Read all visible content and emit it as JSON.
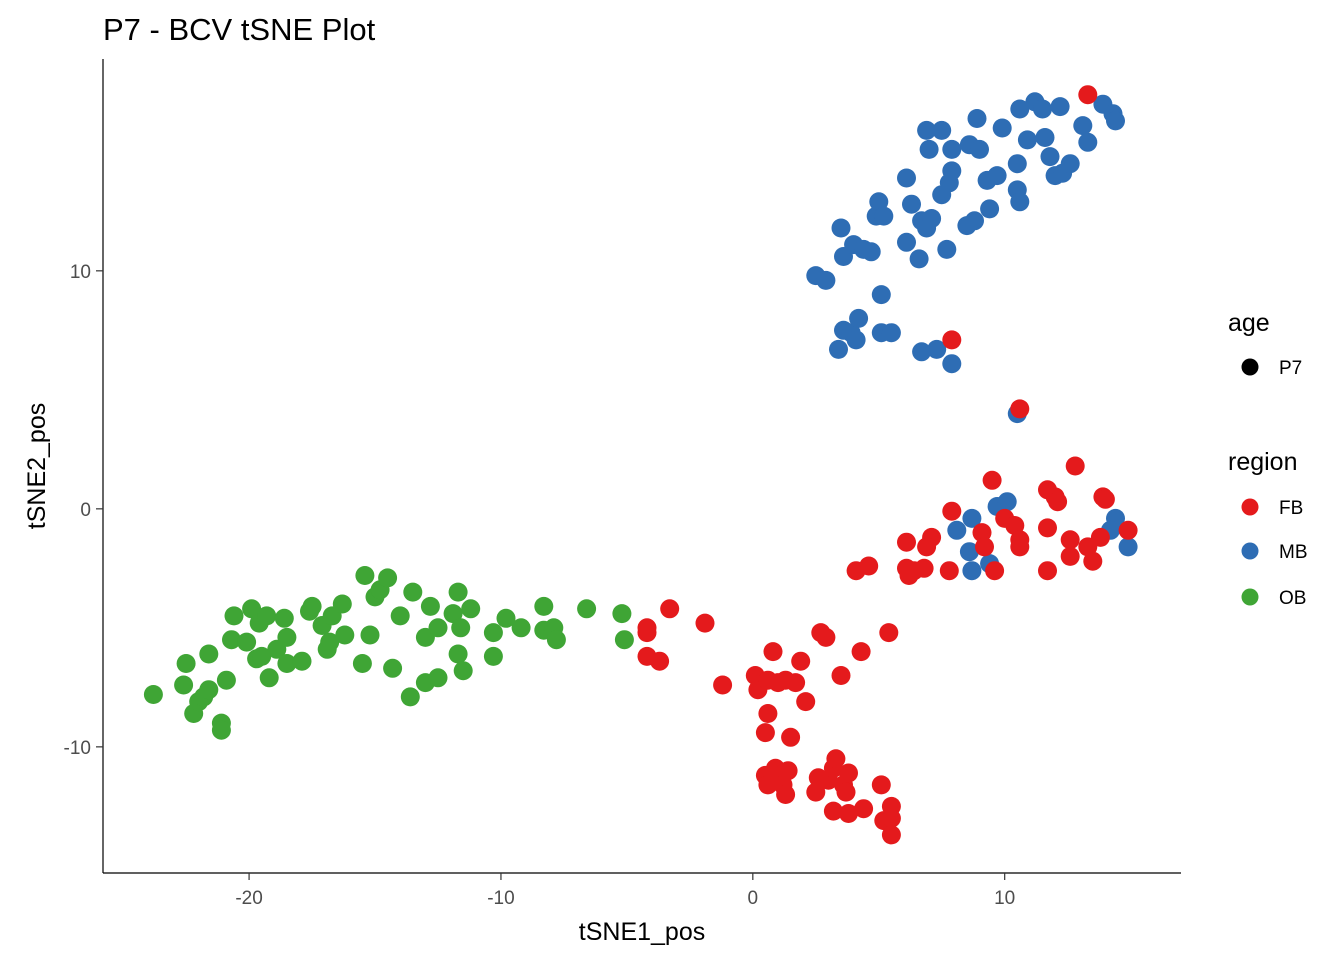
{
  "chart_data": {
    "type": "scatter",
    "title": "P7 - BCV tSNE Plot",
    "xlabel": "tSNE1_pos",
    "ylabel": "tSNE2_pos",
    "xlim": [
      -25.8,
      17.0
    ],
    "ylim": [
      -15.3,
      18.9
    ],
    "xticks": [
      -20,
      -10,
      0,
      10
    ],
    "yticks": [
      -10,
      0,
      10
    ],
    "x_tick_labels": [
      "-20",
      "-10",
      "0",
      "10"
    ],
    "y_tick_labels": [
      "-10",
      "0",
      "10"
    ],
    "grid": false,
    "legend": {
      "placement": "right",
      "groups": [
        {
          "title": "age",
          "entries": [
            {
              "label": "P7",
              "color": "#000000"
            }
          ]
        },
        {
          "title": "region",
          "entries": [
            {
              "label": "FB",
              "color": "#E41A1C"
            },
            {
              "label": "MB",
              "color": "#2E6DB4"
            },
            {
              "label": "OB",
              "color": "#3FA535"
            }
          ]
        }
      ]
    },
    "series": [
      {
        "name": "MB",
        "color": "#2E6DB4",
        "points": [
          [
            2.5,
            9.8
          ],
          [
            2.9,
            9.6
          ],
          [
            3.4,
            6.7
          ],
          [
            3.6,
            7.5
          ],
          [
            3.9,
            7.4
          ],
          [
            4.1,
            7.1
          ],
          [
            4.2,
            8.0
          ],
          [
            5.1,
            9.0
          ],
          [
            5.1,
            7.4
          ],
          [
            5.5,
            7.4
          ],
          [
            6.7,
            6.6
          ],
          [
            7.3,
            6.7
          ],
          [
            7.9,
            6.1
          ],
          [
            10.5,
            4.0
          ],
          [
            3.5,
            11.8
          ],
          [
            3.6,
            10.6
          ],
          [
            4.0,
            11.1
          ],
          [
            4.4,
            10.9
          ],
          [
            4.7,
            10.8
          ],
          [
            4.9,
            12.3
          ],
          [
            5.0,
            12.9
          ],
          [
            5.2,
            12.3
          ],
          [
            6.1,
            13.9
          ],
          [
            6.1,
            11.2
          ],
          [
            6.3,
            12.8
          ],
          [
            6.6,
            10.5
          ],
          [
            6.7,
            12.1
          ],
          [
            6.9,
            11.8
          ],
          [
            6.9,
            15.9
          ],
          [
            7.0,
            15.1
          ],
          [
            7.1,
            12.2
          ],
          [
            7.5,
            13.2
          ],
          [
            7.5,
            15.9
          ],
          [
            7.7,
            10.9
          ],
          [
            7.8,
            13.7
          ],
          [
            7.9,
            14.2
          ],
          [
            7.9,
            15.1
          ],
          [
            8.5,
            11.9
          ],
          [
            8.6,
            15.3
          ],
          [
            8.8,
            12.1
          ],
          [
            8.9,
            16.4
          ],
          [
            9.0,
            15.1
          ],
          [
            9.3,
            13.8
          ],
          [
            9.4,
            12.6
          ],
          [
            9.7,
            14.0
          ],
          [
            9.9,
            16.0
          ],
          [
            10.5,
            14.5
          ],
          [
            10.5,
            13.4
          ],
          [
            10.6,
            12.9
          ],
          [
            10.6,
            16.8
          ],
          [
            10.9,
            15.5
          ],
          [
            11.2,
            17.1
          ],
          [
            11.5,
            16.8
          ],
          [
            11.6,
            15.6
          ],
          [
            11.8,
            14.8
          ],
          [
            12.0,
            14.0
          ],
          [
            12.2,
            16.9
          ],
          [
            12.3,
            14.1
          ],
          [
            12.6,
            14.5
          ],
          [
            13.1,
            16.1
          ],
          [
            13.3,
            15.4
          ],
          [
            13.9,
            17.0
          ],
          [
            14.3,
            16.6
          ],
          [
            14.4,
            16.3
          ],
          [
            8.7,
            -0.4
          ],
          [
            8.1,
            -0.9
          ],
          [
            8.6,
            -1.8
          ],
          [
            8.7,
            -2.6
          ],
          [
            9.4,
            -2.3
          ],
          [
            9.7,
            0.1
          ],
          [
            10.1,
            0.3
          ],
          [
            14.4,
            -0.4
          ],
          [
            14.2,
            -0.9
          ],
          [
            14.9,
            -1.6
          ]
        ]
      },
      {
        "name": "FB",
        "color": "#E41A1C",
        "points": [
          [
            13.3,
            17.4
          ],
          [
            7.9,
            7.1
          ],
          [
            10.6,
            4.2
          ],
          [
            7.9,
            -0.1
          ],
          [
            7.8,
            -2.6
          ],
          [
            9.5,
            1.2
          ],
          [
            9.1,
            -1.0
          ],
          [
            9.2,
            -1.6
          ],
          [
            9.6,
            -2.6
          ],
          [
            10.0,
            -0.4
          ],
          [
            10.4,
            -0.7
          ],
          [
            10.6,
            -1.3
          ],
          [
            10.6,
            -1.6
          ],
          [
            11.7,
            0.8
          ],
          [
            11.7,
            -0.8
          ],
          [
            11.7,
            -2.6
          ],
          [
            12.0,
            0.5
          ],
          [
            12.1,
            0.3
          ],
          [
            12.6,
            -1.3
          ],
          [
            12.6,
            -2.0
          ],
          [
            12.8,
            1.8
          ],
          [
            13.3,
            -1.6
          ],
          [
            13.5,
            -2.2
          ],
          [
            13.8,
            -1.2
          ],
          [
            13.9,
            0.5
          ],
          [
            14.0,
            0.4
          ],
          [
            14.9,
            -0.9
          ],
          [
            7.1,
            -1.2
          ],
          [
            6.9,
            -1.6
          ],
          [
            6.1,
            -1.4
          ],
          [
            6.1,
            -2.5
          ],
          [
            6.2,
            -2.8
          ],
          [
            6.4,
            -2.6
          ],
          [
            6.8,
            -2.5
          ],
          [
            4.1,
            -2.6
          ],
          [
            4.6,
            -2.4
          ],
          [
            -3.3,
            -4.2
          ],
          [
            -4.2,
            -5.0
          ],
          [
            -4.2,
            -5.2
          ],
          [
            -4.2,
            -6.2
          ],
          [
            -3.7,
            -6.4
          ],
          [
            -1.9,
            -4.8
          ],
          [
            -1.2,
            -7.4
          ],
          [
            0.1,
            -7.0
          ],
          [
            0.2,
            -7.6
          ],
          [
            0.6,
            -7.2
          ],
          [
            0.8,
            -6.0
          ],
          [
            0.6,
            -8.6
          ],
          [
            0.5,
            -9.4
          ],
          [
            1.0,
            -7.3
          ],
          [
            1.3,
            -7.2
          ],
          [
            1.5,
            -9.6
          ],
          [
            1.7,
            -7.3
          ],
          [
            1.9,
            -6.4
          ],
          [
            2.1,
            -8.1
          ],
          [
            2.7,
            -5.2
          ],
          [
            2.9,
            -5.4
          ],
          [
            3.5,
            -7.0
          ],
          [
            4.3,
            -6.0
          ],
          [
            5.4,
            -5.2
          ],
          [
            0.5,
            -11.2
          ],
          [
            0.6,
            -11.6
          ],
          [
            0.9,
            -10.9
          ],
          [
            1.1,
            -11.2
          ],
          [
            1.2,
            -11.6
          ],
          [
            1.3,
            -12.0
          ],
          [
            1.4,
            -11.0
          ],
          [
            2.5,
            -11.9
          ],
          [
            2.6,
            -11.3
          ],
          [
            3.0,
            -11.4
          ],
          [
            3.2,
            -10.9
          ],
          [
            3.3,
            -10.5
          ],
          [
            3.2,
            -12.7
          ],
          [
            3.6,
            -11.6
          ],
          [
            3.7,
            -11.9
          ],
          [
            3.8,
            -11.1
          ],
          [
            3.8,
            -12.8
          ],
          [
            4.4,
            -12.6
          ],
          [
            5.1,
            -11.6
          ],
          [
            5.2,
            -13.1
          ],
          [
            5.5,
            -12.5
          ],
          [
            5.5,
            -13.0
          ],
          [
            5.5,
            -13.7
          ]
        ]
      },
      {
        "name": "OB",
        "color": "#3FA535",
        "points": [
          [
            -23.8,
            -7.8
          ],
          [
            -22.6,
            -7.4
          ],
          [
            -22.5,
            -6.5
          ],
          [
            -22.2,
            -8.6
          ],
          [
            -22.0,
            -8.1
          ],
          [
            -21.8,
            -7.9
          ],
          [
            -21.6,
            -7.6
          ],
          [
            -21.6,
            -6.1
          ],
          [
            -21.1,
            -9.0
          ],
          [
            -21.1,
            -9.3
          ],
          [
            -20.9,
            -7.2
          ],
          [
            -20.7,
            -5.5
          ],
          [
            -20.6,
            -4.5
          ],
          [
            -20.1,
            -5.6
          ],
          [
            -19.9,
            -4.2
          ],
          [
            -19.7,
            -6.3
          ],
          [
            -19.6,
            -4.8
          ],
          [
            -19.5,
            -6.2
          ],
          [
            -19.3,
            -4.5
          ],
          [
            -19.2,
            -7.1
          ],
          [
            -18.9,
            -5.9
          ],
          [
            -18.6,
            -4.6
          ],
          [
            -18.5,
            -5.4
          ],
          [
            -18.5,
            -6.5
          ],
          [
            -17.9,
            -6.4
          ],
          [
            -17.6,
            -4.3
          ],
          [
            -17.5,
            -4.1
          ],
          [
            -17.1,
            -4.9
          ],
          [
            -16.9,
            -5.9
          ],
          [
            -16.8,
            -5.6
          ],
          [
            -16.7,
            -4.5
          ],
          [
            -16.3,
            -4.0
          ],
          [
            -16.2,
            -5.3
          ],
          [
            -15.5,
            -6.5
          ],
          [
            -15.4,
            -2.8
          ],
          [
            -15.2,
            -5.3
          ],
          [
            -15.0,
            -3.7
          ],
          [
            -14.8,
            -3.4
          ],
          [
            -14.5,
            -2.9
          ],
          [
            -14.3,
            -6.7
          ],
          [
            -14.0,
            -4.5
          ],
          [
            -13.6,
            -7.9
          ],
          [
            -13.5,
            -3.5
          ],
          [
            -13.0,
            -5.4
          ],
          [
            -13.0,
            -7.3
          ],
          [
            -12.8,
            -4.1
          ],
          [
            -12.5,
            -5.0
          ],
          [
            -12.5,
            -7.1
          ],
          [
            -11.9,
            -4.4
          ],
          [
            -11.7,
            -3.5
          ],
          [
            -11.7,
            -6.1
          ],
          [
            -11.6,
            -5.0
          ],
          [
            -11.5,
            -6.8
          ],
          [
            -11.2,
            -4.2
          ],
          [
            -10.3,
            -6.2
          ],
          [
            -10.3,
            -5.2
          ],
          [
            -9.8,
            -4.6
          ],
          [
            -9.2,
            -5.0
          ],
          [
            -8.3,
            -4.1
          ],
          [
            -8.3,
            -5.1
          ],
          [
            -7.9,
            -5.0
          ],
          [
            -7.8,
            -5.5
          ],
          [
            -6.6,
            -4.2
          ],
          [
            -5.2,
            -4.4
          ],
          [
            -5.1,
            -5.5
          ]
        ]
      }
    ]
  }
}
